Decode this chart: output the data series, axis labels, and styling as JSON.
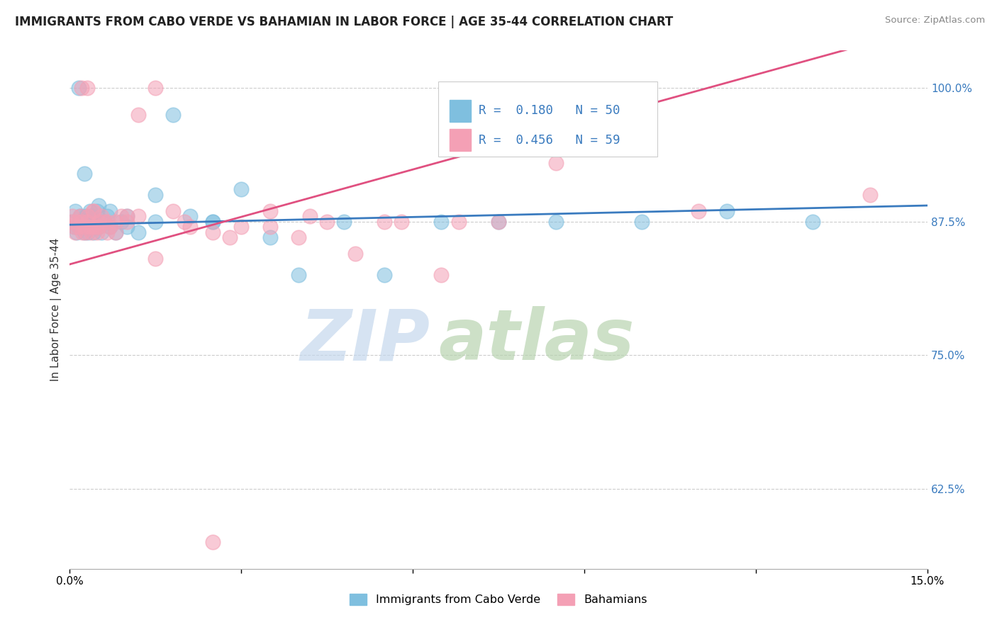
{
  "title": "IMMIGRANTS FROM CABO VERDE VS BAHAMIAN IN LABOR FORCE | AGE 35-44 CORRELATION CHART",
  "source": "Source: ZipAtlas.com",
  "ylabel": "In Labor Force | Age 35-44",
  "xlim": [
    0.0,
    15.0
  ],
  "ylim": [
    55.0,
    103.5
  ],
  "legend_label1": "Immigrants from Cabo Verde",
  "legend_label2": "Bahamians",
  "R1": 0.18,
  "N1": 50,
  "R2": 0.456,
  "N2": 59,
  "color_blue": "#7fbfdf",
  "color_pink": "#f4a0b5",
  "color_blue_line": "#3a7bbf",
  "color_pink_line": "#e05080",
  "color_rn": "#3a7bbf",
  "watermark_zip": "ZIP",
  "watermark_atlas": "atlas",
  "watermark_color_zip": "#c0cfe0",
  "watermark_color_atlas": "#b0c8a0",
  "yticks": [
    62.5,
    75.0,
    87.5,
    100.0
  ],
  "blue_x": [
    0.05,
    0.08,
    0.1,
    0.12,
    0.15,
    0.18,
    0.2,
    0.22,
    0.25,
    0.28,
    0.3,
    0.32,
    0.35,
    0.38,
    0.4,
    0.42,
    0.45,
    0.48,
    0.5,
    0.55,
    0.6,
    0.65,
    0.7,
    0.8,
    0.9,
    1.0,
    1.2,
    1.5,
    1.8,
    2.1,
    2.5,
    3.0,
    3.5,
    4.0,
    4.8,
    5.5,
    6.5,
    7.5,
    8.5,
    10.0,
    11.5,
    13.0,
    0.15,
    0.25,
    0.35,
    0.5,
    0.7,
    1.0,
    1.5,
    2.5
  ],
  "blue_y": [
    87.5,
    87.0,
    88.5,
    86.5,
    87.0,
    88.0,
    87.5,
    87.0,
    86.5,
    88.0,
    87.0,
    86.5,
    87.5,
    88.0,
    87.0,
    86.5,
    87.0,
    88.5,
    87.0,
    86.5,
    87.5,
    88.0,
    87.0,
    86.5,
    87.5,
    87.0,
    86.5,
    90.0,
    97.5,
    88.0,
    87.5,
    90.5,
    86.0,
    82.5,
    87.5,
    82.5,
    87.5,
    87.5,
    87.5,
    87.5,
    88.5,
    87.5,
    100.0,
    92.0,
    88.5,
    89.0,
    88.5,
    88.0,
    87.5,
    87.5
  ],
  "pink_x": [
    0.03,
    0.05,
    0.08,
    0.1,
    0.12,
    0.15,
    0.18,
    0.2,
    0.22,
    0.25,
    0.28,
    0.3,
    0.32,
    0.35,
    0.38,
    0.4,
    0.42,
    0.45,
    0.48,
    0.5,
    0.55,
    0.6,
    0.65,
    0.7,
    0.8,
    0.9,
    1.0,
    1.2,
    1.5,
    1.8,
    2.1,
    2.5,
    3.0,
    3.5,
    4.0,
    4.5,
    5.0,
    5.8,
    6.5,
    7.5,
    1.2,
    0.2,
    0.3,
    0.4,
    0.5,
    0.65,
    0.8,
    1.0,
    1.5,
    2.0,
    2.8,
    3.5,
    4.2,
    5.5,
    6.8,
    8.5,
    11.0,
    14.0,
    2.5
  ],
  "pink_y": [
    87.5,
    88.0,
    87.0,
    86.5,
    87.5,
    87.0,
    88.0,
    87.5,
    86.5,
    87.0,
    86.5,
    87.5,
    88.0,
    87.0,
    86.5,
    87.0,
    88.5,
    87.0,
    86.5,
    87.5,
    88.0,
    87.5,
    86.5,
    87.0,
    86.5,
    88.0,
    87.5,
    97.5,
    100.0,
    88.5,
    87.0,
    86.5,
    87.0,
    88.5,
    86.0,
    87.5,
    84.5,
    87.5,
    82.5,
    87.5,
    88.0,
    100.0,
    100.0,
    88.5,
    87.0,
    87.5,
    87.5,
    88.0,
    84.0,
    87.5,
    86.0,
    87.0,
    88.0,
    87.5,
    87.5,
    93.0,
    88.5,
    90.0,
    57.5
  ]
}
